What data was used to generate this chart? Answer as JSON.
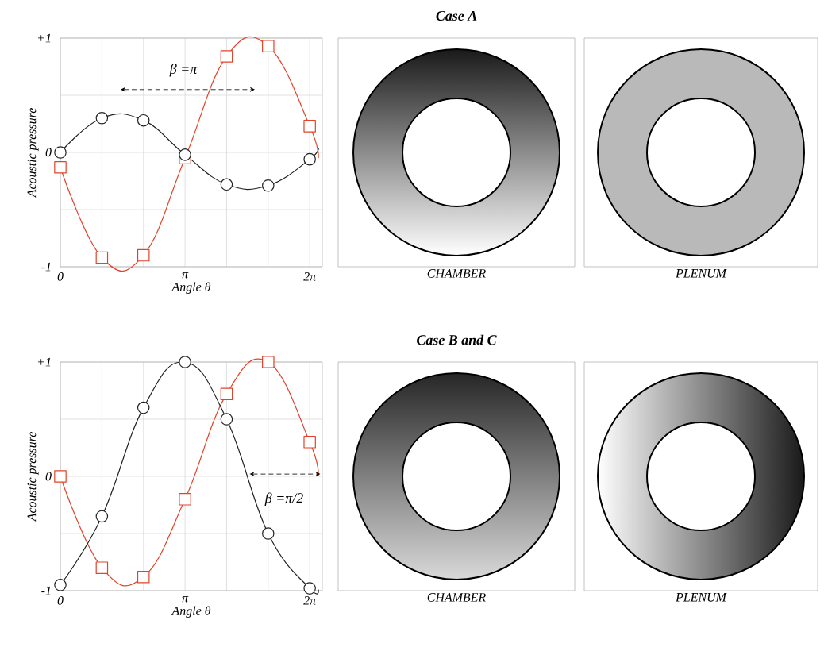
{
  "chart_data": [
    {
      "type": "line",
      "xlabel": "Angle θ",
      "ylabel": "Acoustic pressure",
      "xlim": [
        0,
        6.6
      ],
      "ylim": [
        -1,
        1
      ],
      "grid": true,
      "xticks": [
        {
          "value": 0,
          "label": "0"
        },
        {
          "value": 1.0472,
          "label": null
        },
        {
          "value": 2.0944,
          "label": null
        },
        {
          "value": 3.1416,
          "label": "π"
        },
        {
          "value": 4.1888,
          "label": null
        },
        {
          "value": 5.236,
          "label": null
        },
        {
          "value": 6.2832,
          "label": "2π"
        }
      ],
      "yticks": [
        -1,
        {
          "value": -0.5,
          "label": null
        },
        0,
        {
          "value": 0.5,
          "label": null
        },
        {
          "value": 1,
          "label": "+1"
        }
      ],
      "annotations": [
        "β =π"
      ],
      "series": [
        {
          "color": "#e0442a",
          "marker": "square",
          "x": [
            0,
            1.0472,
            2.0944,
            3.1416,
            4.1888,
            5.236,
            6.2832,
            6.5
          ],
          "values": [
            -0.13,
            -0.92,
            -0.9,
            -0.05,
            0.84,
            0.93,
            0.23,
            -0.05
          ]
        },
        {
          "color": "#222222",
          "marker": "circle",
          "x": [
            0,
            1.0472,
            2.0944,
            3.1416,
            4.1888,
            5.236,
            6.2832,
            6.5
          ],
          "values": [
            0,
            0.3,
            0.28,
            -0.02,
            -0.28,
            -0.29,
            -0.06,
            0.04
          ]
        }
      ]
    },
    {
      "type": "other",
      "title": "Case A",
      "xlabel": "CHAMBER"
    },
    {
      "type": "other",
      "xlabel": "PLENUM"
    },
    {
      "type": "line",
      "xlabel": "Angle θ",
      "ylabel": "Acoustic pressure",
      "xlim": [
        0,
        6.6
      ],
      "ylim": [
        -1,
        1
      ],
      "grid": true,
      "xticks": [
        {
          "value": 0,
          "label": "0"
        },
        {
          "value": 1.0472,
          "label": null
        },
        {
          "value": 2.0944,
          "label": null
        },
        {
          "value": 3.1416,
          "label": "π"
        },
        {
          "value": 4.1888,
          "label": null
        },
        {
          "value": 5.236,
          "label": null
        },
        {
          "value": 6.2832,
          "label": "2π"
        }
      ],
      "yticks": [
        -1,
        {
          "value": -0.5,
          "label": null
        },
        0,
        {
          "value": 0.5,
          "label": null
        },
        {
          "value": 1,
          "label": "+1"
        }
      ],
      "annotations": [
        "β =π/2"
      ],
      "series": [
        {
          "color": "#e0442a",
          "marker": "square",
          "x": [
            0,
            1.0472,
            2.0944,
            3.1416,
            4.1888,
            5.236,
            6.2832,
            6.5
          ],
          "values": [
            0,
            -0.8,
            -0.88,
            -0.2,
            0.72,
            1.0,
            0.3,
            0.0
          ]
        },
        {
          "color": "#222222",
          "marker": "circle",
          "x": [
            0,
            1.0472,
            2.0944,
            3.1416,
            4.1888,
            5.236,
            6.2832,
            6.5
          ],
          "values": [
            -0.95,
            -0.35,
            0.6,
            1.0,
            0.5,
            -0.5,
            -0.98,
            -0.99
          ]
        }
      ]
    },
    {
      "type": "other",
      "title": "Case B and C",
      "xlabel": "CHAMBER"
    },
    {
      "type": "other",
      "xlabel": "PLENUM"
    }
  ]
}
